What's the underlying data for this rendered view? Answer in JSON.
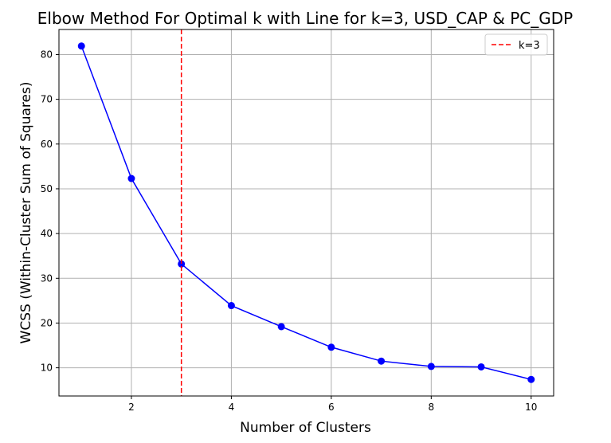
{
  "chart_data": {
    "type": "line",
    "title": "Elbow Method For Optimal k with Line for k=3, USD_CAP & PC_GDP",
    "xlabel": "Number of Clusters",
    "ylabel": "WCSS (Within-Cluster Sum of Squares)",
    "x": [
      1,
      2,
      3,
      4,
      5,
      6,
      7,
      8,
      9,
      10
    ],
    "series": [
      {
        "values": [
          81.9,
          52.3,
          33.2,
          23.9,
          19.2,
          14.6,
          11.5,
          10.3,
          10.2,
          7.4
        ],
        "color": "#0000ff",
        "marker": "circle"
      }
    ],
    "xlim": [
      0.55,
      10.45
    ],
    "ylim": [
      3.7,
      85.6
    ],
    "xticks": [
      2,
      4,
      6,
      8,
      10
    ],
    "yticks": [
      10,
      20,
      30,
      40,
      50,
      60,
      70,
      80
    ],
    "grid": true,
    "vline": {
      "x": 3,
      "label": "k=3",
      "color": "#ff0000",
      "style": "dashed"
    },
    "legend": {
      "placement": "top-right",
      "entries": [
        "k=3"
      ]
    }
  }
}
